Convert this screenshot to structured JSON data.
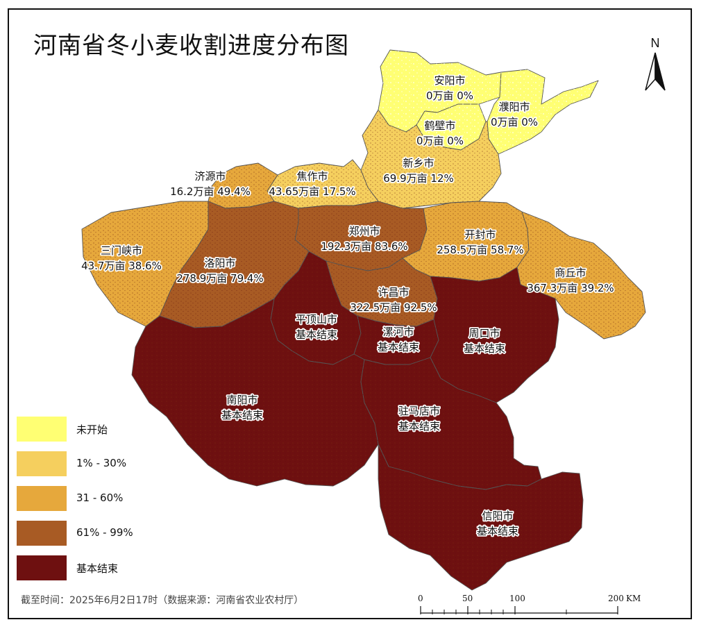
{
  "title": "河南省冬小麦收割进度分布图",
  "north_label": "N",
  "legend": [
    {
      "label": "未开始",
      "color": "#FFFF73"
    },
    {
      "label": "1% - 30%",
      "color": "#F5CF5E"
    },
    {
      "label": "31 - 60%",
      "color": "#E6A83C"
    },
    {
      "label": "61% - 99%",
      "color": "#A85B24"
    },
    {
      "label": "基本结束",
      "color": "#6E1010"
    }
  ],
  "cities": [
    {
      "id": "anyang",
      "name": "安阳市",
      "stat": "0万亩 0%",
      "status": "未开始"
    },
    {
      "id": "puyang",
      "name": "濮阳市",
      "stat": "0万亩 0%",
      "status": "未开始"
    },
    {
      "id": "hebi",
      "name": "鹤壁市",
      "stat": "0万亩 0%",
      "status": "未开始"
    },
    {
      "id": "xinxiang",
      "name": "新乡市",
      "stat": "69.9万亩 12%",
      "status": "1% - 30%"
    },
    {
      "id": "jiaozuo",
      "name": "焦作市",
      "stat": "43.65万亩 17.5%",
      "status": "1% - 30%"
    },
    {
      "id": "jiyuan",
      "name": "济源市",
      "stat": "16.2万亩 49.4%",
      "status": "31 - 60%"
    },
    {
      "id": "zhengzhou",
      "name": "郑州市",
      "stat": "192.3万亩 83.6%",
      "status": "61% - 99%"
    },
    {
      "id": "kaifeng",
      "name": "开封市",
      "stat": "258.5万亩 58.7%",
      "status": "31 - 60%"
    },
    {
      "id": "shangqiu",
      "name": "商丘市",
      "stat": "367.3万亩 39.2%",
      "status": "31 - 60%"
    },
    {
      "id": "sanmenxia",
      "name": "三门峡市",
      "stat": "43.7万亩 38.6%",
      "status": "31 - 60%"
    },
    {
      "id": "luoyang",
      "name": "洛阳市",
      "stat": "278.9万亩 79.4%",
      "status": "61% - 99%"
    },
    {
      "id": "xuchang",
      "name": "许昌市",
      "stat": "322.5万亩 92.5%",
      "status": "61% - 99%"
    },
    {
      "id": "pingdingshan",
      "name": "平顶山市",
      "stat": "基本结束",
      "status": "基本结束"
    },
    {
      "id": "luohe",
      "name": "漯河市",
      "stat": "基本结束",
      "status": "基本结束"
    },
    {
      "id": "zhoukou",
      "name": "周口市",
      "stat": "基本结束",
      "status": "基本结束"
    },
    {
      "id": "nanyang",
      "name": "南阳市",
      "stat": "基本结束",
      "status": "基本结束"
    },
    {
      "id": "zhumadian",
      "name": "驻马店市",
      "stat": "基本结束",
      "status": "基本结束"
    },
    {
      "id": "xinyang",
      "name": "信阳市",
      "stat": "基本结束",
      "status": "基本结束"
    }
  ],
  "footnote": "截至时间：2025年6月2日17时（数据来源：河南省农业农村厅）",
  "scale": {
    "ticks": [
      "0",
      "50",
      "100",
      "200"
    ],
    "unit": "KM"
  }
}
